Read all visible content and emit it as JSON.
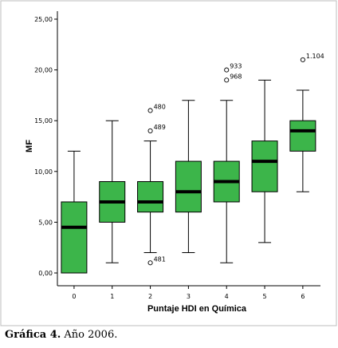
{
  "caption": {
    "label": "Gráfica 4.",
    "text": "Año 2006."
  },
  "chart_data": {
    "type": "boxplot",
    "xlabel": "Puntaje HDI en Química",
    "ylabel": "MF",
    "ylim": [
      0,
      25
    ],
    "y_ticks": [
      0,
      5,
      10,
      15,
      20,
      25
    ],
    "y_tick_labels": [
      "0,00",
      "5,00",
      "10,00",
      "15,00",
      "20,00",
      "25,00"
    ],
    "categories": [
      "0",
      "1",
      "2",
      "3",
      "4",
      "5",
      "6"
    ],
    "box_color": "#3cb54a",
    "grid": false,
    "boxes": [
      {
        "category": "0",
        "whisker_low": 0,
        "q1": 0,
        "median": 4.5,
        "q3": 7,
        "whisker_high": 12,
        "outliers": []
      },
      {
        "category": "1",
        "whisker_low": 1,
        "q1": 5,
        "median": 7,
        "q3": 9,
        "whisker_high": 15,
        "outliers": []
      },
      {
        "category": "2",
        "whisker_low": 2,
        "q1": 6,
        "median": 7,
        "q3": 9,
        "whisker_high": 13,
        "outliers": [
          {
            "value": 16,
            "label": "480"
          },
          {
            "value": 14,
            "label": "489"
          },
          {
            "value": 1,
            "label": "481"
          }
        ]
      },
      {
        "category": "3",
        "whisker_low": 2,
        "q1": 6,
        "median": 8,
        "q3": 11,
        "whisker_high": 17,
        "outliers": []
      },
      {
        "category": "4",
        "whisker_low": 1,
        "q1": 7,
        "median": 9,
        "q3": 11,
        "whisker_high": 17,
        "outliers": [
          {
            "value": 20,
            "label": "933"
          },
          {
            "value": 19,
            "label": "968"
          }
        ]
      },
      {
        "category": "5",
        "whisker_low": 3,
        "q1": 8,
        "median": 11,
        "q3": 13,
        "whisker_high": 19,
        "outliers": []
      },
      {
        "category": "6",
        "whisker_low": 8,
        "q1": 12,
        "median": 14,
        "q3": 15,
        "whisker_high": 18,
        "outliers": [
          {
            "value": 21,
            "label": "1.104"
          }
        ]
      }
    ]
  }
}
